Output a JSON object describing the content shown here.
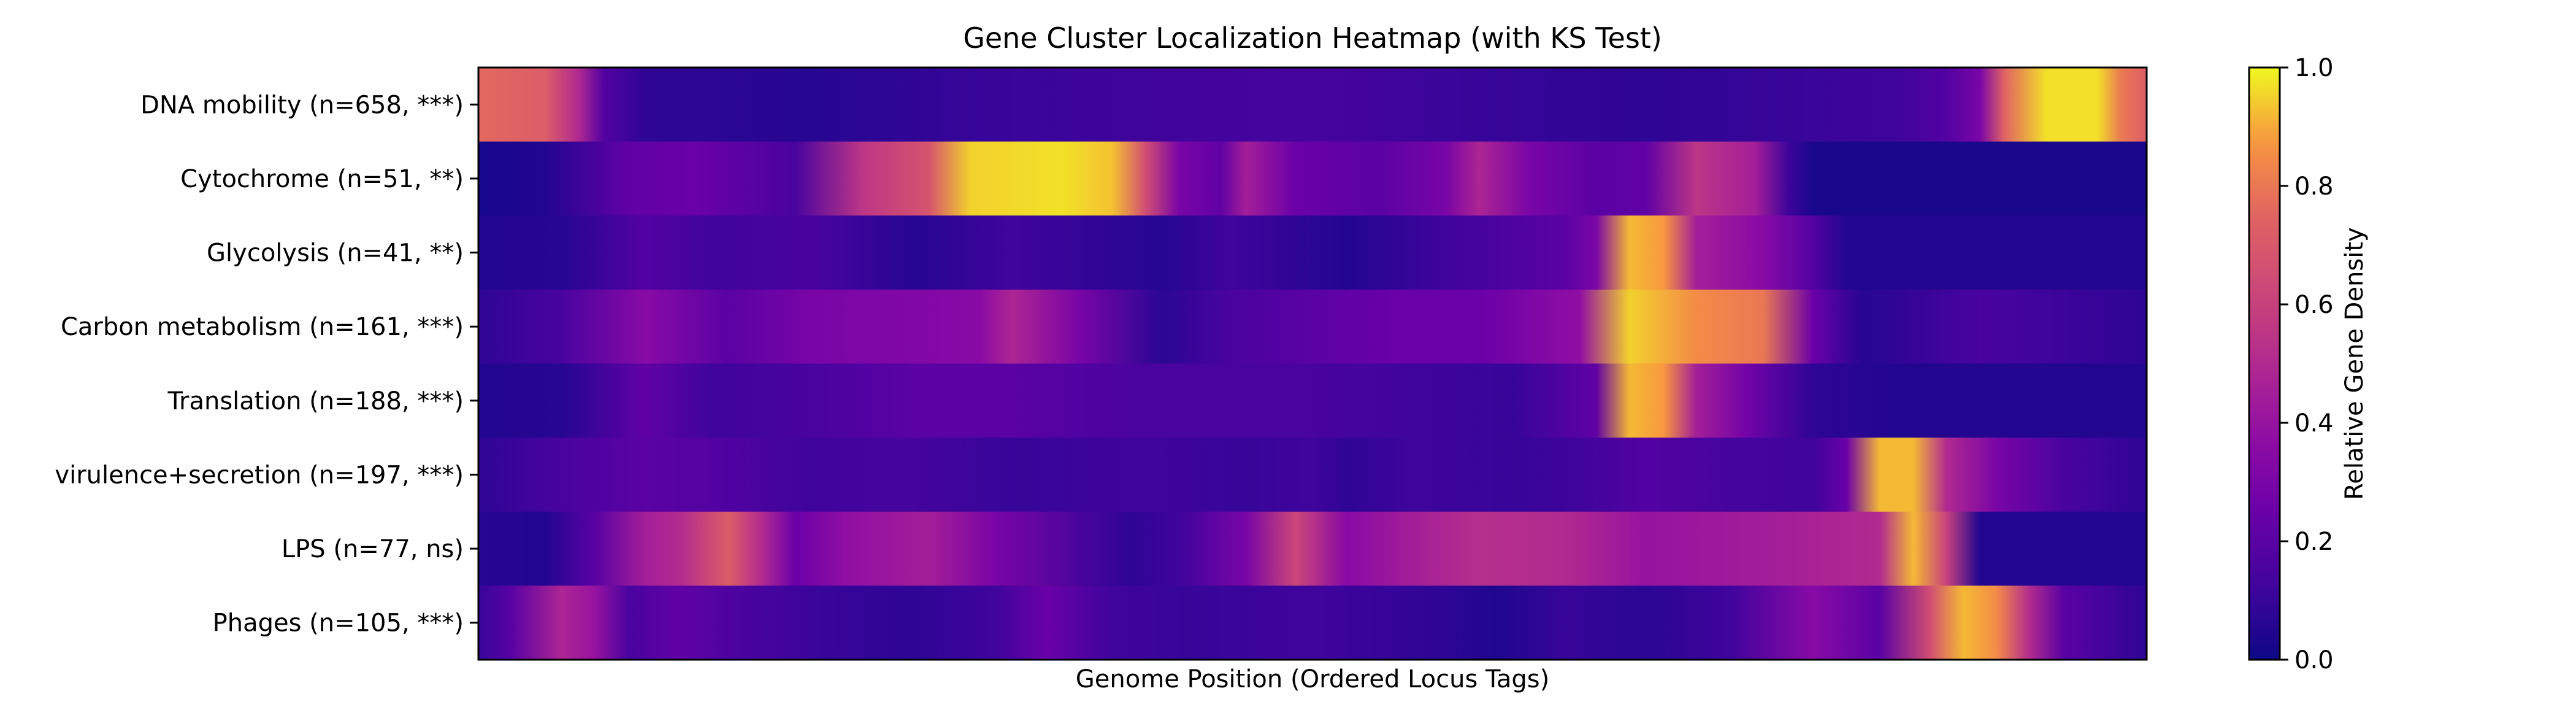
{
  "chart_data": {
    "type": "heatmap",
    "title": "Gene Cluster Localization Heatmap (with KS Test)",
    "xlabel": "Genome Position (Ordered Locus Tags)",
    "x_ticks": [],
    "colormap": "plasma",
    "colorbar": {
      "label": "Relative Gene Density",
      "range": [
        0,
        1
      ],
      "ticks": [
        0.0,
        0.2,
        0.4,
        0.6,
        0.8,
        1.0
      ],
      "tick_labels": [
        "0.0",
        "0.2",
        "0.4",
        "0.6",
        "0.8",
        "1.0"
      ]
    },
    "x_range": [
      0,
      1
    ],
    "rows": [
      {
        "label": "DNA mobility (n=658, ***)",
        "profile": [
          [
            0.0,
            0.76
          ],
          [
            0.04,
            0.72
          ],
          [
            0.06,
            0.5
          ],
          [
            0.075,
            0.18
          ],
          [
            0.1,
            0.08
          ],
          [
            0.2,
            0.06
          ],
          [
            0.3,
            0.1
          ],
          [
            0.4,
            0.12
          ],
          [
            0.5,
            0.14
          ],
          [
            0.6,
            0.1
          ],
          [
            0.7,
            0.08
          ],
          [
            0.78,
            0.1
          ],
          [
            0.85,
            0.12
          ],
          [
            0.88,
            0.18
          ],
          [
            0.9,
            0.3
          ],
          [
            0.915,
            0.75
          ],
          [
            0.94,
            0.97
          ],
          [
            0.97,
            0.97
          ],
          [
            0.985,
            0.8
          ],
          [
            1.0,
            0.72
          ]
        ]
      },
      {
        "label": "Cytochrome (n=51, **)",
        "profile": [
          [
            0.0,
            0.02
          ],
          [
            0.04,
            0.05
          ],
          [
            0.09,
            0.22
          ],
          [
            0.13,
            0.25
          ],
          [
            0.19,
            0.15
          ],
          [
            0.23,
            0.55
          ],
          [
            0.27,
            0.68
          ],
          [
            0.295,
            0.95
          ],
          [
            0.35,
            0.97
          ],
          [
            0.38,
            0.93
          ],
          [
            0.4,
            0.65
          ],
          [
            0.42,
            0.3
          ],
          [
            0.445,
            0.22
          ],
          [
            0.46,
            0.45
          ],
          [
            0.49,
            0.25
          ],
          [
            0.54,
            0.2
          ],
          [
            0.58,
            0.3
          ],
          [
            0.6,
            0.48
          ],
          [
            0.63,
            0.3
          ],
          [
            0.67,
            0.2
          ],
          [
            0.7,
            0.22
          ],
          [
            0.73,
            0.55
          ],
          [
            0.765,
            0.45
          ],
          [
            0.785,
            0.12
          ],
          [
            0.8,
            0.03
          ],
          [
            1.0,
            0.03
          ]
        ]
      },
      {
        "label": "Glycolysis (n=41, **)",
        "profile": [
          [
            0.0,
            0.05
          ],
          [
            0.05,
            0.06
          ],
          [
            0.1,
            0.18
          ],
          [
            0.14,
            0.12
          ],
          [
            0.2,
            0.15
          ],
          [
            0.26,
            0.06
          ],
          [
            0.32,
            0.12
          ],
          [
            0.41,
            0.06
          ],
          [
            0.45,
            0.12
          ],
          [
            0.52,
            0.05
          ],
          [
            0.58,
            0.12
          ],
          [
            0.65,
            0.2
          ],
          [
            0.67,
            0.3
          ],
          [
            0.69,
            0.92
          ],
          [
            0.71,
            0.88
          ],
          [
            0.73,
            0.45
          ],
          [
            0.77,
            0.35
          ],
          [
            0.8,
            0.18
          ],
          [
            0.82,
            0.05
          ],
          [
            1.0,
            0.05
          ]
        ]
      },
      {
        "label": "Carbon metabolism (n=161, ***)",
        "profile": [
          [
            0.0,
            0.08
          ],
          [
            0.05,
            0.15
          ],
          [
            0.1,
            0.35
          ],
          [
            0.15,
            0.2
          ],
          [
            0.2,
            0.3
          ],
          [
            0.25,
            0.32
          ],
          [
            0.3,
            0.35
          ],
          [
            0.32,
            0.48
          ],
          [
            0.36,
            0.3
          ],
          [
            0.41,
            0.07
          ],
          [
            0.45,
            0.15
          ],
          [
            0.5,
            0.2
          ],
          [
            0.55,
            0.25
          ],
          [
            0.6,
            0.25
          ],
          [
            0.66,
            0.38
          ],
          [
            0.69,
            0.95
          ],
          [
            0.73,
            0.85
          ],
          [
            0.77,
            0.8
          ],
          [
            0.8,
            0.25
          ],
          [
            0.83,
            0.06
          ],
          [
            0.9,
            0.15
          ],
          [
            1.0,
            0.08
          ]
        ]
      },
      {
        "label": "Translation (n=188, ***)",
        "profile": [
          [
            0.0,
            0.05
          ],
          [
            0.05,
            0.06
          ],
          [
            0.1,
            0.22
          ],
          [
            0.14,
            0.12
          ],
          [
            0.2,
            0.15
          ],
          [
            0.26,
            0.2
          ],
          [
            0.32,
            0.2
          ],
          [
            0.4,
            0.15
          ],
          [
            0.45,
            0.15
          ],
          [
            0.5,
            0.15
          ],
          [
            0.56,
            0.12
          ],
          [
            0.62,
            0.1
          ],
          [
            0.67,
            0.22
          ],
          [
            0.69,
            0.92
          ],
          [
            0.71,
            0.88
          ],
          [
            0.73,
            0.45
          ],
          [
            0.76,
            0.28
          ],
          [
            0.8,
            0.08
          ],
          [
            0.85,
            0.05
          ],
          [
            1.0,
            0.05
          ]
        ]
      },
      {
        "label": "virulence+secretion (n=197, ***)",
        "profile": [
          [
            0.0,
            0.08
          ],
          [
            0.05,
            0.15
          ],
          [
            0.1,
            0.2
          ],
          [
            0.14,
            0.18
          ],
          [
            0.2,
            0.12
          ],
          [
            0.25,
            0.14
          ],
          [
            0.32,
            0.1
          ],
          [
            0.4,
            0.12
          ],
          [
            0.46,
            0.1
          ],
          [
            0.5,
            0.12
          ],
          [
            0.52,
            0.08
          ],
          [
            0.56,
            0.12
          ],
          [
            0.62,
            0.1
          ],
          [
            0.66,
            0.12
          ],
          [
            0.7,
            0.18
          ],
          [
            0.75,
            0.14
          ],
          [
            0.8,
            0.12
          ],
          [
            0.82,
            0.25
          ],
          [
            0.84,
            0.92
          ],
          [
            0.86,
            0.92
          ],
          [
            0.88,
            0.5
          ],
          [
            0.91,
            0.3
          ],
          [
            0.95,
            0.15
          ],
          [
            1.0,
            0.08
          ]
        ]
      },
      {
        "label": "LPS (n=77, ns)",
        "profile": [
          [
            0.0,
            0.06
          ],
          [
            0.04,
            0.05
          ],
          [
            0.07,
            0.2
          ],
          [
            0.1,
            0.45
          ],
          [
            0.12,
            0.5
          ],
          [
            0.15,
            0.72
          ],
          [
            0.17,
            0.5
          ],
          [
            0.19,
            0.25
          ],
          [
            0.22,
            0.38
          ],
          [
            0.27,
            0.45
          ],
          [
            0.31,
            0.3
          ],
          [
            0.39,
            0.08
          ],
          [
            0.42,
            0.12
          ],
          [
            0.46,
            0.3
          ],
          [
            0.49,
            0.62
          ],
          [
            0.52,
            0.35
          ],
          [
            0.56,
            0.45
          ],
          [
            0.6,
            0.52
          ],
          [
            0.65,
            0.5
          ],
          [
            0.7,
            0.4
          ],
          [
            0.78,
            0.45
          ],
          [
            0.84,
            0.5
          ],
          [
            0.86,
            0.92
          ],
          [
            0.88,
            0.6
          ],
          [
            0.9,
            0.05
          ],
          [
            1.0,
            0.05
          ]
        ]
      },
      {
        "label": "Phages (n=105, ***)",
        "profile": [
          [
            0.0,
            0.1
          ],
          [
            0.02,
            0.2
          ],
          [
            0.05,
            0.48
          ],
          [
            0.07,
            0.4
          ],
          [
            0.09,
            0.15
          ],
          [
            0.12,
            0.22
          ],
          [
            0.16,
            0.15
          ],
          [
            0.21,
            0.1
          ],
          [
            0.26,
            0.08
          ],
          [
            0.31,
            0.12
          ],
          [
            0.34,
            0.25
          ],
          [
            0.38,
            0.12
          ],
          [
            0.43,
            0.1
          ],
          [
            0.5,
            0.12
          ],
          [
            0.58,
            0.08
          ],
          [
            0.61,
            0.04
          ],
          [
            0.65,
            0.1
          ],
          [
            0.7,
            0.07
          ],
          [
            0.75,
            0.12
          ],
          [
            0.8,
            0.35
          ],
          [
            0.84,
            0.2
          ],
          [
            0.87,
            0.65
          ],
          [
            0.89,
            0.92
          ],
          [
            0.91,
            0.85
          ],
          [
            0.93,
            0.5
          ],
          [
            0.95,
            0.2
          ],
          [
            1.0,
            0.08
          ]
        ]
      }
    ]
  }
}
